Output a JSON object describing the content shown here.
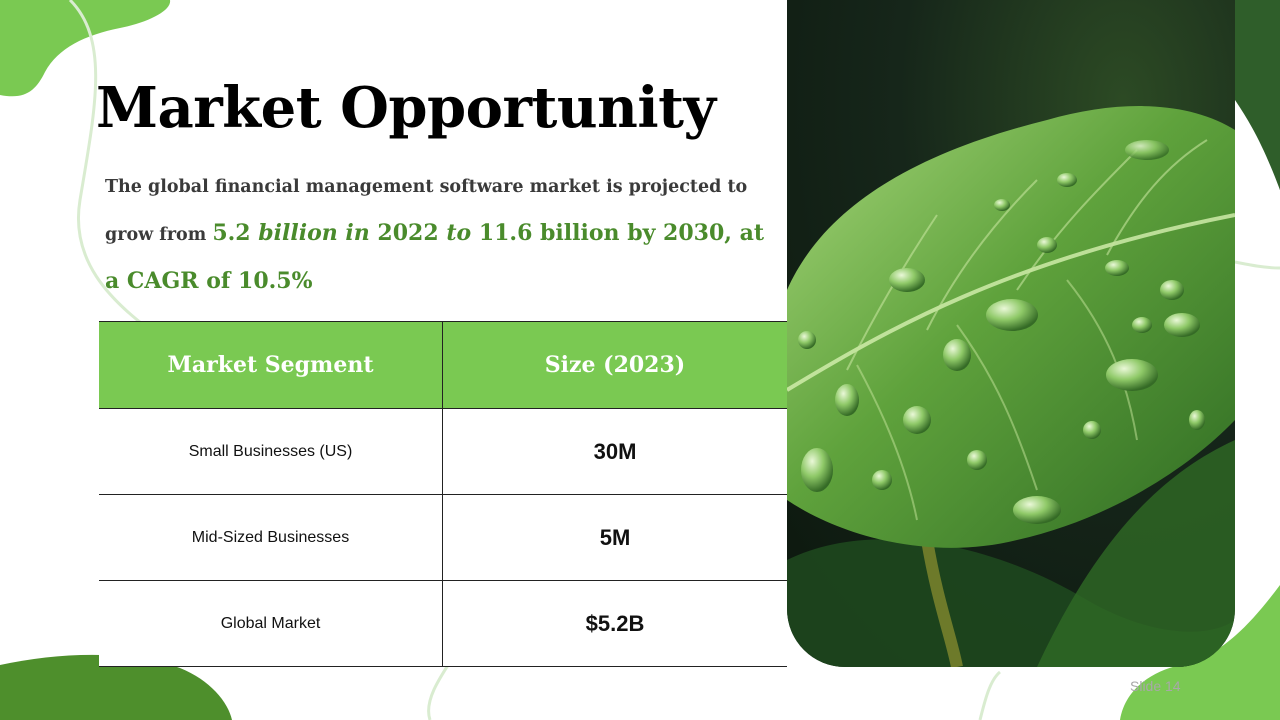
{
  "slide": {
    "title": "Market Opportunity",
    "intro": {
      "text1": "The global financial management software market is projected to grow from ",
      "v1": "5.2",
      "t2": " billion in ",
      "v2": "2022",
      "t3": " to ",
      "v3": "11.6 billion by 2030, at a CAGR of 10.5%"
    },
    "table": {
      "headers": [
        "Market Segment",
        "Size (2023)"
      ],
      "rows": [
        {
          "segment": "Small Businesses (US)",
          "size": "30M"
        },
        {
          "segment": "Mid-Sized Businesses",
          "size": "5M"
        },
        {
          "segment": "Global Market",
          "size": "$5.2B"
        }
      ]
    },
    "image": {
      "subject": "leaf-with-water-droplets"
    },
    "slide_number": "Slide 14"
  },
  "colors": {
    "accent_green": "#7ac952",
    "dark_green": "#4a8b2c",
    "leaf_green": "#3f7a2a"
  }
}
